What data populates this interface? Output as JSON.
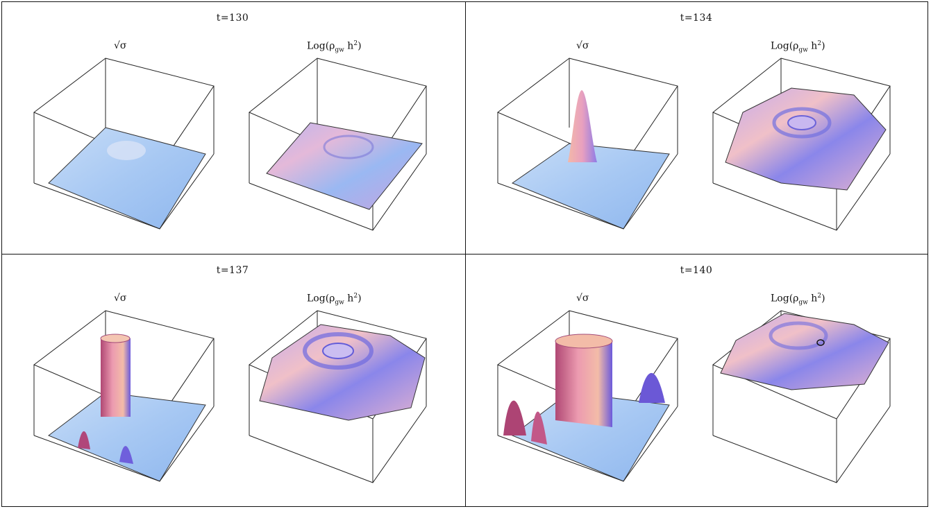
{
  "figure": {
    "panels": [
      {
        "time_label": "t=130",
        "left_label": "√σ",
        "right_label_prefix": "Log(ρ",
        "right_label_sub": "gw",
        "right_label_mid": " h",
        "right_label_sup": "2",
        "right_label_suffix": ")"
      },
      {
        "time_label": "t=134",
        "left_label": "√σ",
        "right_label_prefix": "Log(ρ",
        "right_label_sub": "gw",
        "right_label_mid": " h",
        "right_label_sup": "2",
        "right_label_suffix": ")"
      },
      {
        "time_label": "t=137",
        "left_label": "√σ",
        "right_label_prefix": "Log(ρ",
        "right_label_sub": "gw",
        "right_label_mid": " h",
        "right_label_sup": "2",
        "right_label_suffix": ")"
      },
      {
        "time_label": "t=140",
        "left_label": "√σ",
        "right_label_prefix": "Log(ρ",
        "right_label_sub": "gw",
        "right_label_mid": " h",
        "right_label_sup": "2",
        "right_label_suffix": ")"
      }
    ],
    "colors": {
      "surface_blue": "#a9cdf5",
      "surface_pink": "#e7a6c8",
      "surface_violet": "#7f6fe0",
      "surface_magenta": "#b4477a",
      "frame": "#222222"
    }
  }
}
